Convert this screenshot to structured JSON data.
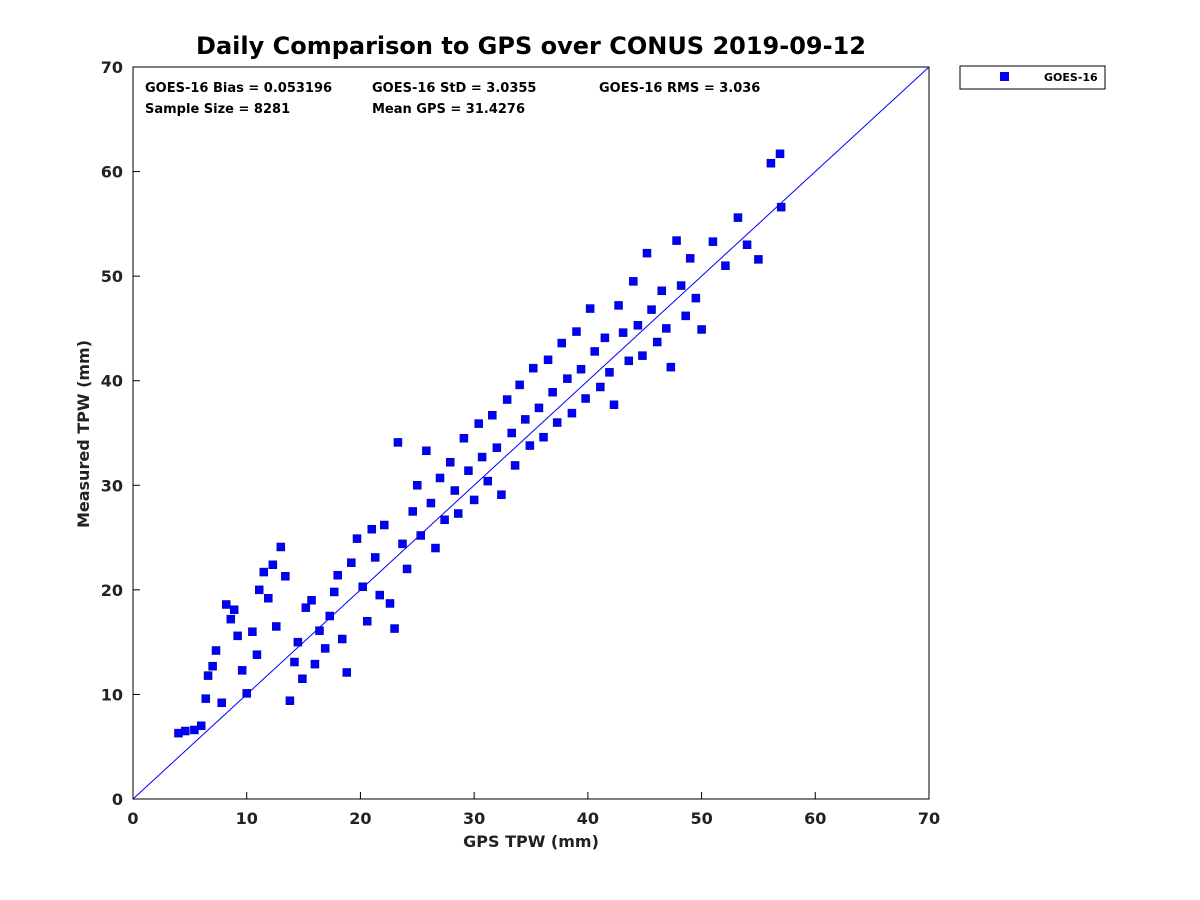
{
  "chart_data": {
    "type": "scatter",
    "title": "Daily Comparison to GPS over CONUS 2019-09-12",
    "xlabel": "GPS TPW (mm)",
    "ylabel": "Measured TPW (mm)",
    "xlim": [
      0,
      70
    ],
    "ylim": [
      0,
      70
    ],
    "xticks": [
      "0",
      "10",
      "20",
      "30",
      "40",
      "50",
      "60",
      "70"
    ],
    "yticks": [
      "0",
      "10",
      "20",
      "30",
      "40",
      "50",
      "60",
      "70"
    ],
    "grid": false,
    "legend_position": "outside-top-right",
    "series": [
      {
        "name": "GOES-16",
        "color": "#0000ff",
        "marker": "square",
        "points": [
          [
            4.0,
            6.3
          ],
          [
            4.6,
            6.5
          ],
          [
            5.4,
            6.6
          ],
          [
            6.0,
            7.0
          ],
          [
            6.4,
            9.6
          ],
          [
            6.6,
            11.8
          ],
          [
            7.0,
            12.7
          ],
          [
            7.3,
            14.2
          ],
          [
            7.8,
            9.2
          ],
          [
            8.2,
            18.6
          ],
          [
            8.6,
            17.2
          ],
          [
            8.9,
            18.1
          ],
          [
            9.2,
            15.6
          ],
          [
            9.6,
            12.3
          ],
          [
            10.0,
            10.1
          ],
          [
            10.5,
            16.0
          ],
          [
            10.9,
            13.8
          ],
          [
            11.1,
            20.0
          ],
          [
            11.5,
            21.7
          ],
          [
            11.9,
            19.2
          ],
          [
            12.3,
            22.4
          ],
          [
            12.6,
            16.5
          ],
          [
            13.0,
            24.1
          ],
          [
            13.4,
            21.3
          ],
          [
            13.8,
            9.4
          ],
          [
            14.2,
            13.1
          ],
          [
            14.5,
            15.0
          ],
          [
            14.9,
            11.5
          ],
          [
            15.2,
            18.3
          ],
          [
            15.7,
            19.0
          ],
          [
            16.0,
            12.9
          ],
          [
            16.4,
            16.1
          ],
          [
            16.9,
            14.4
          ],
          [
            17.3,
            17.5
          ],
          [
            17.7,
            19.8
          ],
          [
            18.0,
            21.4
          ],
          [
            18.4,
            15.3
          ],
          [
            18.8,
            12.1
          ],
          [
            19.2,
            22.6
          ],
          [
            19.7,
            24.9
          ],
          [
            20.2,
            20.3
          ],
          [
            20.6,
            17.0
          ],
          [
            21.0,
            25.8
          ],
          [
            21.3,
            23.1
          ],
          [
            21.7,
            19.5
          ],
          [
            22.1,
            26.2
          ],
          [
            22.6,
            18.7
          ],
          [
            23.0,
            16.3
          ],
          [
            23.3,
            34.1
          ],
          [
            23.7,
            24.4
          ],
          [
            24.1,
            22.0
          ],
          [
            24.6,
            27.5
          ],
          [
            25.0,
            30.0
          ],
          [
            25.3,
            25.2
          ],
          [
            25.8,
            33.3
          ],
          [
            26.2,
            28.3
          ],
          [
            26.6,
            24.0
          ],
          [
            27.0,
            30.7
          ],
          [
            27.4,
            26.7
          ],
          [
            27.9,
            32.2
          ],
          [
            28.3,
            29.5
          ],
          [
            28.6,
            27.3
          ],
          [
            29.1,
            34.5
          ],
          [
            29.5,
            31.4
          ],
          [
            30.0,
            28.6
          ],
          [
            30.4,
            35.9
          ],
          [
            30.7,
            32.7
          ],
          [
            31.2,
            30.4
          ],
          [
            31.6,
            36.7
          ],
          [
            32.0,
            33.6
          ],
          [
            32.4,
            29.1
          ],
          [
            32.9,
            38.2
          ],
          [
            33.3,
            35.0
          ],
          [
            33.6,
            31.9
          ],
          [
            34.0,
            39.6
          ],
          [
            34.5,
            36.3
          ],
          [
            34.9,
            33.8
          ],
          [
            35.2,
            41.2
          ],
          [
            35.7,
            37.4
          ],
          [
            36.1,
            34.6
          ],
          [
            36.5,
            42.0
          ],
          [
            36.9,
            38.9
          ],
          [
            37.3,
            36.0
          ],
          [
            37.7,
            43.6
          ],
          [
            38.2,
            40.2
          ],
          [
            38.6,
            36.9
          ],
          [
            39.0,
            44.7
          ],
          [
            39.4,
            41.1
          ],
          [
            39.8,
            38.3
          ],
          [
            40.2,
            46.9
          ],
          [
            40.6,
            42.8
          ],
          [
            41.1,
            39.4
          ],
          [
            41.5,
            44.1
          ],
          [
            41.9,
            40.8
          ],
          [
            42.3,
            37.7
          ],
          [
            42.7,
            47.2
          ],
          [
            43.1,
            44.6
          ],
          [
            43.6,
            41.9
          ],
          [
            44.0,
            49.5
          ],
          [
            44.4,
            45.3
          ],
          [
            44.8,
            42.4
          ],
          [
            45.2,
            52.2
          ],
          [
            45.6,
            46.8
          ],
          [
            46.1,
            43.7
          ],
          [
            46.5,
            48.6
          ],
          [
            46.9,
            45.0
          ],
          [
            47.3,
            41.3
          ],
          [
            47.8,
            53.4
          ],
          [
            48.2,
            49.1
          ],
          [
            48.6,
            46.2
          ],
          [
            49.0,
            51.7
          ],
          [
            49.5,
            47.9
          ],
          [
            50.0,
            44.9
          ],
          [
            51.0,
            53.3
          ],
          [
            52.1,
            51.0
          ],
          [
            53.2,
            55.6
          ],
          [
            54.0,
            53.0
          ],
          [
            55.0,
            51.6
          ],
          [
            56.1,
            60.8
          ],
          [
            56.9,
            61.7
          ],
          [
            57.0,
            56.6
          ]
        ]
      }
    ],
    "reference_line": {
      "label": "1:1",
      "from": [
        0,
        0
      ],
      "to": [
        70,
        70
      ]
    },
    "annotations": [
      {
        "key": "bias",
        "text": "GOES-16 Bias = 0.053196"
      },
      {
        "key": "std",
        "text": "GOES-16 StD = 3.0355"
      },
      {
        "key": "rms",
        "text": "GOES-16 RMS = 3.036"
      },
      {
        "key": "sample",
        "text": "Sample Size = 8281"
      },
      {
        "key": "mean",
        "text": "Mean GPS = 31.4276"
      }
    ]
  }
}
